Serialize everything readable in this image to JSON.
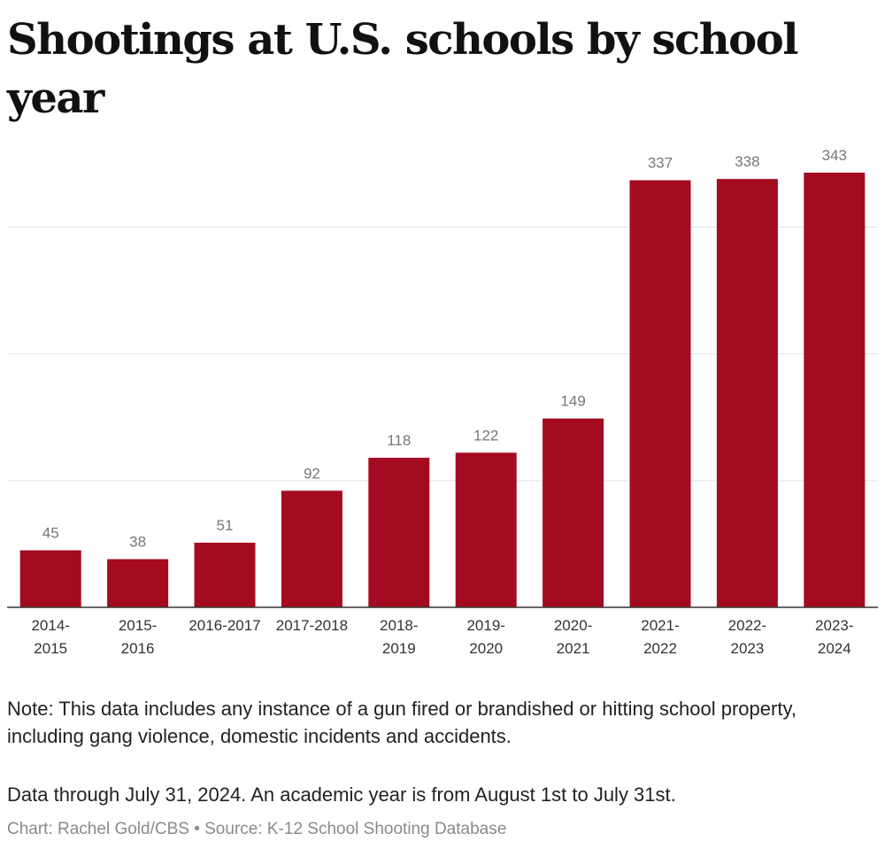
{
  "title": "Shootings at U.S. schools by school year",
  "note": "Note: This data includes any instance of a gun fired or brandished or hitting school property, including gang violence, domestic incidents and accidents.",
  "data_through": "Data through July 31, 2024. An academic year is from August 1st to July 31st.",
  "credit": "Chart: Rachel Gold/CBS • Source: K-12 School Shooting Database",
  "chart_data": {
    "type": "bar",
    "title": "Shootings at U.S. schools by school year",
    "xlabel": "",
    "ylabel": "",
    "categories": [
      [
        "2014-",
        "2015"
      ],
      [
        "2015-",
        "2016"
      ],
      [
        "2016-2017"
      ],
      [
        "2017-2018"
      ],
      [
        "2018-",
        "2019"
      ],
      [
        "2019-",
        "2020"
      ],
      [
        "2020-",
        "2021"
      ],
      [
        "2021-",
        "2022"
      ],
      [
        "2022-",
        "2023"
      ],
      [
        "2023-",
        "2024"
      ]
    ],
    "values": [
      45,
      38,
      51,
      92,
      118,
      122,
      149,
      337,
      338,
      343
    ],
    "ylim": [
      0,
      343
    ],
    "gridlines": [
      100,
      200,
      300
    ],
    "grid": true,
    "legend": "none",
    "bar_color": "#a50b20",
    "value_label_color": "#777777"
  }
}
